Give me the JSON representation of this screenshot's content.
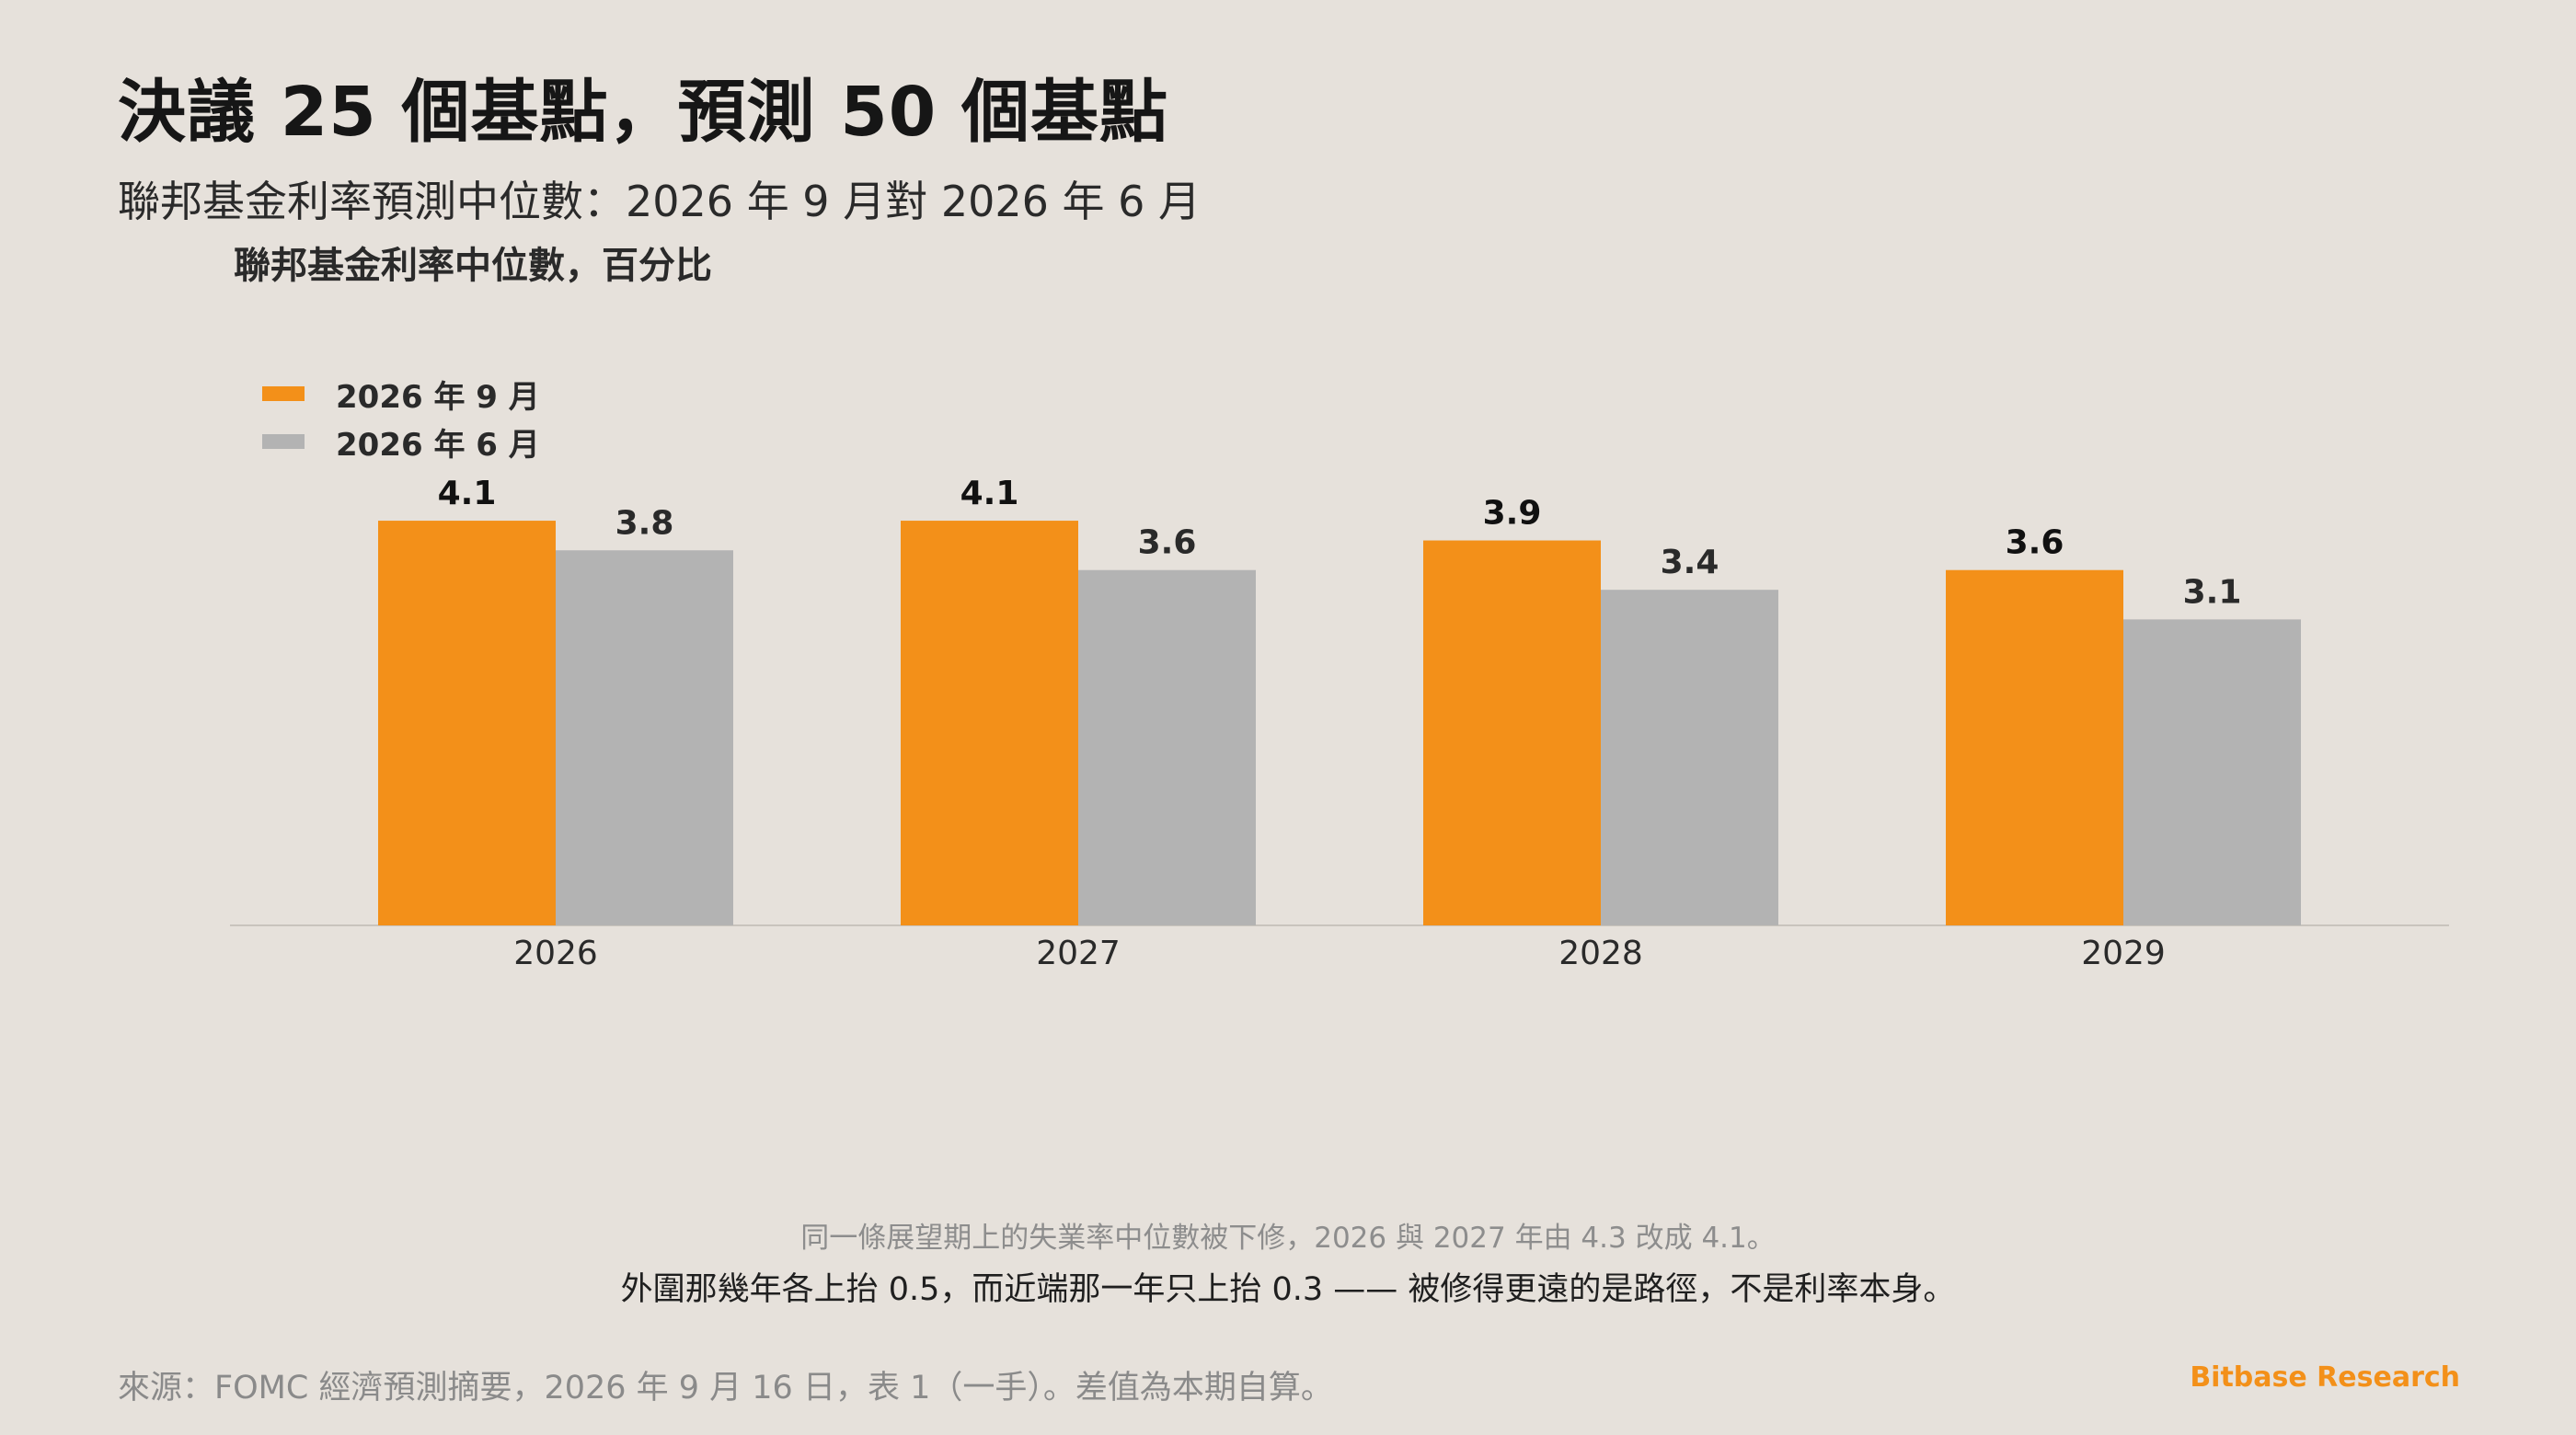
{
  "page": {
    "title": "決議 25 個基點，預測 50 個基點",
    "subtitle": "聯邦基金利率預測中位數：2026 年 9 月對 2026 年 6 月",
    "note_line1": "同一條展望期上的失業率中位數被下修，2026 與 2027 年由 4.3 改成 4.1。",
    "note_line2": "外圍那幾年各上抬 0.5，而近端那一年只上抬 0.3 —— 被修得更遠的是路徑，不是利率本身。",
    "source": "來源：FOMC 經濟預測摘要，2026 年 9 月 16 日，表 1（一手）。差值為本期自算。",
    "brand": "Bitbase Research"
  },
  "colors": {
    "background": "#e6e1db",
    "sep_series": "#f39019",
    "jun_series": "#b3b3b3",
    "brand": "#f39019"
  },
  "chart_data": {
    "type": "bar",
    "ylabel": "聯邦基金利率中位數，百分比",
    "categories": [
      "2026",
      "2027",
      "2028",
      "2029"
    ],
    "series": [
      {
        "name": "2026 年 9 月",
        "values": [
          4.1,
          4.1,
          3.9,
          3.6
        ],
        "color": "#f39019"
      },
      {
        "name": "2026 年 6 月",
        "values": [
          3.8,
          3.6,
          3.4,
          3.1
        ],
        "color": "#b3b3b3"
      }
    ],
    "ylim": [
      0,
      4.5
    ],
    "grid": false,
    "legend_position": "top-left",
    "data_labels": true
  }
}
